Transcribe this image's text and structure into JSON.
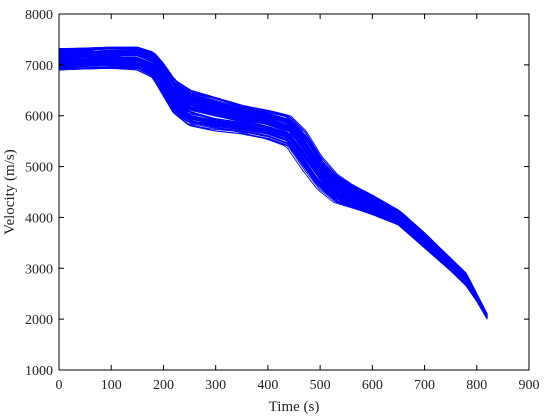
{
  "chart_data": {
    "type": "line",
    "title": "",
    "xlabel": "Time (s)",
    "ylabel": "Velocity (m/s)",
    "xlim": [
      0,
      900
    ],
    "ylim": [
      1000,
      8000
    ],
    "xticks": [
      0,
      100,
      200,
      300,
      400,
      500,
      600,
      700,
      800,
      900
    ],
    "yticks": [
      1000,
      2000,
      3000,
      4000,
      5000,
      6000,
      7000,
      8000
    ],
    "grid": false,
    "legend": "none",
    "color": "#0000ff",
    "series_count": 100,
    "envelope": {
      "x": [
        0,
        50,
        100,
        150,
        180,
        200,
        220,
        250,
        300,
        350,
        400,
        440,
        470,
        500,
        530,
        560,
        600,
        650,
        700,
        750,
        780,
        800,
        820
      ],
      "upper": [
        7320,
        7330,
        7350,
        7350,
        7250,
        7000,
        6700,
        6500,
        6350,
        6200,
        6100,
        6000,
        5700,
        5200,
        4850,
        4650,
        4450,
        4150,
        3700,
        3200,
        2900,
        2500,
        2100
      ],
      "lower": [
        6900,
        6920,
        6930,
        6900,
        6750,
        6400,
        6050,
        5800,
        5700,
        5650,
        5550,
        5400,
        4950,
        4550,
        4300,
        4200,
        4050,
        3850,
        3400,
        2950,
        2650,
        2350,
        2000
      ]
    }
  }
}
